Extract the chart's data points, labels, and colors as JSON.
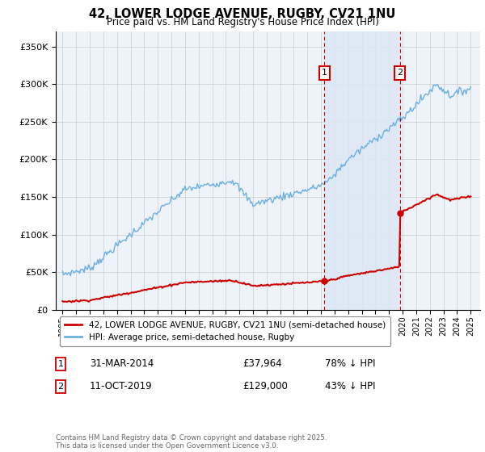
{
  "title": "42, LOWER LODGE AVENUE, RUGBY, CV21 1NU",
  "subtitle": "Price paid vs. HM Land Registry's House Price Index (HPI)",
  "legend_line1": "42, LOWER LODGE AVENUE, RUGBY, CV21 1NU (semi-detached house)",
  "legend_line2": "HPI: Average price, semi-detached house, Rugby",
  "annotation1": {
    "label": "1",
    "date_str": "31-MAR-2014",
    "price": "£37,964",
    "hpi_text": "78% ↓ HPI",
    "x_year": 2014.25,
    "price_val": 37964
  },
  "annotation2": {
    "label": "2",
    "date_str": "11-OCT-2019",
    "price": "£129,000",
    "hpi_text": "43% ↓ HPI",
    "x_year": 2019.79,
    "price_val": 129000
  },
  "footer": "Contains HM Land Registry data © Crown copyright and database right 2025.\nThis data is licensed under the Open Government Licence v3.0.",
  "hpi_color": "#6ab0e0",
  "price_color": "#cc0000",
  "background_color": "#ffffff",
  "plot_bg_color": "#eef3fa",
  "grid_color": "#cccccc",
  "annotation_box_color": "#cc0000",
  "shade_color": "#dce8f5",
  "ylim": [
    0,
    370000
  ],
  "yticks": [
    0,
    50000,
    100000,
    150000,
    200000,
    250000,
    300000,
    350000
  ],
  "xlim_start": 1994.5,
  "xlim_end": 2025.7
}
